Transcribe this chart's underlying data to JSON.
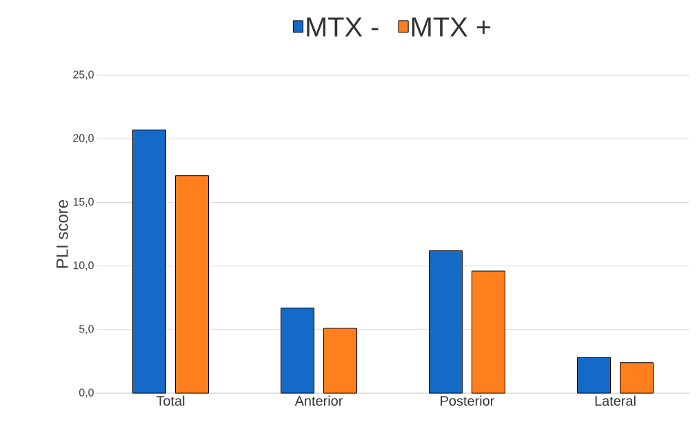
{
  "chart_data": {
    "type": "bar",
    "ylabel": "PLI score",
    "categories": [
      "Total",
      "Anterior",
      "Posterior",
      "Lateral"
    ],
    "series": [
      {
        "name": "MTX -",
        "color": "#1569c7",
        "values": [
          20.7,
          6.7,
          11.2,
          2.8
        ]
      },
      {
        "name": "MTX +",
        "color": "#ff7f1e",
        "values": [
          17.1,
          5.1,
          9.6,
          2.4
        ]
      }
    ],
    "ylim": [
      0,
      25
    ],
    "yticks": [
      {
        "value": 0,
        "label": "0,0"
      },
      {
        "value": 5,
        "label": "5,0"
      },
      {
        "value": 10,
        "label": "10,0"
      },
      {
        "value": 15,
        "label": "15,0"
      },
      {
        "value": 20,
        "label": "20,0"
      },
      {
        "value": 25,
        "label": "25,0"
      }
    ],
    "grid": "y",
    "legend": "top"
  }
}
